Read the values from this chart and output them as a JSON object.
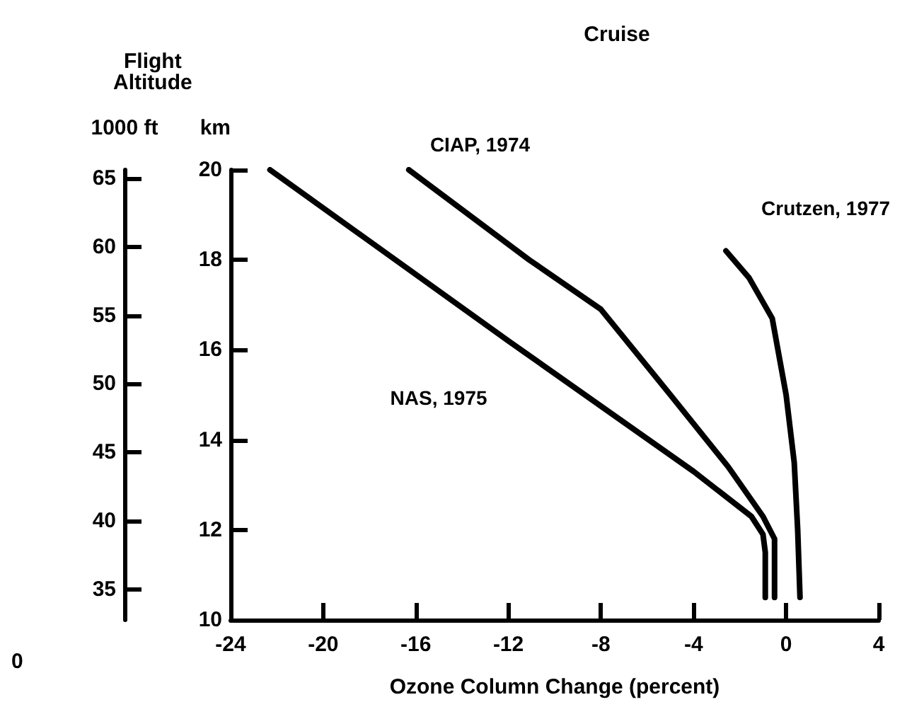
{
  "chart_data": {
    "type": "line",
    "title": "Cruise",
    "xlabel": "Ozone Column Change (percent)",
    "ylabel": "km",
    "y2label": "1000 ft",
    "annotations": [
      "Flight Altitude",
      "0"
    ],
    "xlim": [
      -24,
      4
    ],
    "xticks": [
      -24,
      -20,
      -16,
      -12,
      -8,
      -4,
      0,
      4
    ],
    "ylim": [
      10,
      20
    ],
    "yticks": [
      10,
      12,
      14,
      16,
      18,
      20
    ],
    "y2lim": [
      32.8,
      65.6
    ],
    "y2ticks": [
      35,
      40,
      45,
      50,
      55,
      60,
      65
    ],
    "grid": false,
    "legend": false,
    "marker": "none",
    "line_style": "solid",
    "series": [
      {
        "name": "NAS, 1975",
        "color": "#000000",
        "x": [
          -22.3,
          -12,
          -4,
          -1.5,
          -1.0,
          -0.9,
          -0.9
        ],
        "values": [
          20,
          16.2,
          13.3,
          12.3,
          11.9,
          11.5,
          10.5
        ]
      },
      {
        "name": "CIAP, 1974",
        "color": "#000000",
        "x": [
          -16.3,
          -11.1,
          -8,
          -5,
          -2.5,
          -1,
          -0.5,
          -0.5
        ],
        "values": [
          20,
          18,
          16.9,
          15,
          13.4,
          12.3,
          11.8,
          10.5
        ]
      },
      {
        "name": "Crutzen, 1977",
        "color": "#000000",
        "x": [
          -2.6,
          -1.6,
          -0.6,
          0,
          0.35,
          0.5,
          0.6
        ],
        "values": [
          18.2,
          17.6,
          16.7,
          15,
          13.5,
          12,
          10.5
        ]
      }
    ]
  }
}
